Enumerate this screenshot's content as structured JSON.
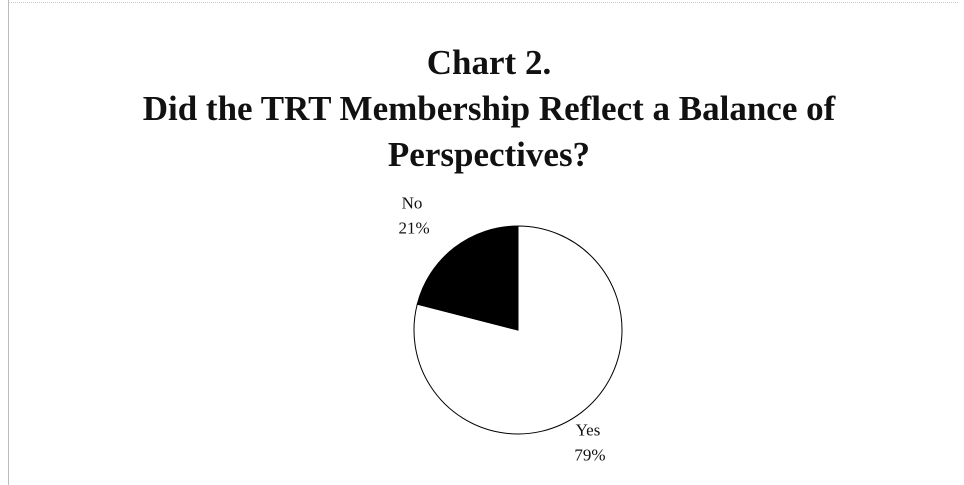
{
  "chart_data": {
    "type": "pie",
    "title": "Chart 2.",
    "subtitle": "Did the TRT Membership Reflect a Balance of Perspectives?",
    "categories": [
      "Yes",
      "No"
    ],
    "values": [
      79,
      21
    ],
    "value_labels": [
      "79%",
      "21%"
    ],
    "colors": [
      "#ffffff",
      "#000000"
    ]
  }
}
